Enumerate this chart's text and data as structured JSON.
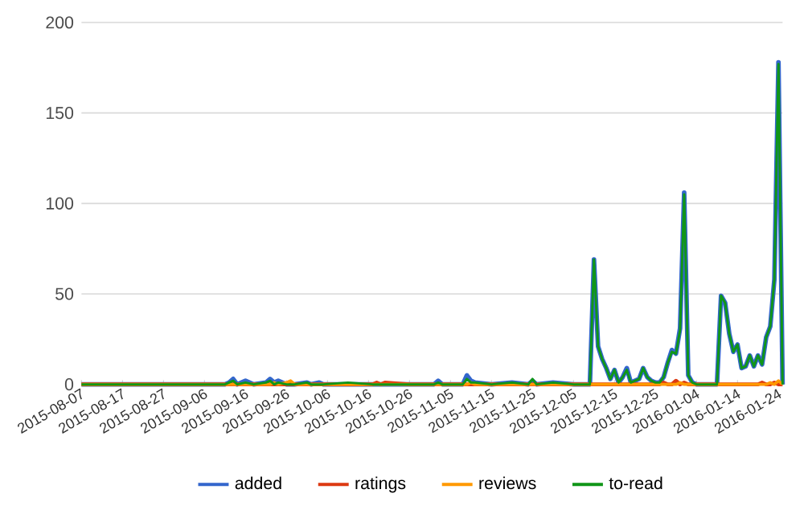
{
  "chart_data": {
    "type": "line",
    "x": [
      "2015-08-07",
      "2015-09-11",
      "2015-09-12",
      "2015-09-13",
      "2015-09-14",
      "2015-09-16",
      "2015-09-18",
      "2015-09-21",
      "2015-09-22",
      "2015-09-23",
      "2015-09-24",
      "2015-09-26",
      "2015-09-27",
      "2015-09-28",
      "2015-10-01",
      "2015-10-02",
      "2015-10-04",
      "2015-10-05",
      "2015-10-11",
      "2015-10-17",
      "2015-10-18",
      "2015-10-19",
      "2015-10-20",
      "2015-10-26",
      "2015-11-01",
      "2015-11-02",
      "2015-11-03",
      "2015-11-08",
      "2015-11-09",
      "2015-11-10",
      "2015-11-11",
      "2015-11-15",
      "2015-11-20",
      "2015-11-24",
      "2015-11-25",
      "2015-11-26",
      "2015-11-30",
      "2015-12-05",
      "2015-12-08",
      "2015-12-09",
      "2015-12-10",
      "2015-12-11",
      "2015-12-12",
      "2015-12-13",
      "2015-12-14",
      "2015-12-15",
      "2015-12-16",
      "2015-12-17",
      "2015-12-18",
      "2015-12-19",
      "2015-12-20",
      "2015-12-21",
      "2015-12-22",
      "2015-12-23",
      "2015-12-24",
      "2015-12-25",
      "2015-12-26",
      "2015-12-27",
      "2015-12-28",
      "2015-12-29",
      "2015-12-30",
      "2015-12-31",
      "2016-01-01",
      "2016-01-02",
      "2016-01-03",
      "2016-01-04",
      "2016-01-05",
      "2016-01-06",
      "2016-01-07",
      "2016-01-08",
      "2016-01-09",
      "2016-01-10",
      "2016-01-11",
      "2016-01-12",
      "2016-01-13",
      "2016-01-14",
      "2016-01-15",
      "2016-01-16",
      "2016-01-17",
      "2016-01-18",
      "2016-01-19",
      "2016-01-20",
      "2016-01-21",
      "2016-01-22",
      "2016-01-23",
      "2016-01-24",
      "2016-01-25"
    ],
    "series": [
      {
        "name": "added",
        "color": "#3366cc",
        "values": [
          0,
          0,
          1,
          3,
          0,
          2,
          0,
          1,
          3,
          1,
          2,
          0,
          0,
          0,
          1,
          0,
          1,
          0,
          0,
          0,
          0,
          0,
          0,
          0,
          0,
          2,
          0,
          0,
          5,
          2,
          1,
          0,
          1,
          0,
          2,
          0,
          1,
          0,
          0,
          0,
          69,
          21,
          14,
          9,
          3,
          8,
          1,
          4,
          9,
          1,
          2,
          3,
          9,
          4,
          2,
          1,
          1,
          4,
          12,
          19,
          17,
          31,
          106,
          5,
          1,
          0,
          0,
          0,
          0,
          0,
          0,
          49,
          45,
          28,
          18,
          22,
          9,
          10,
          16,
          10,
          16,
          11,
          26,
          32,
          58,
          178,
          0
        ]
      },
      {
        "name": "ratings",
        "color": "#dc3912",
        "values": [
          0,
          0,
          0,
          0,
          0,
          0,
          0,
          0,
          0,
          0,
          0,
          0,
          0,
          0,
          0,
          0,
          0,
          0,
          0,
          0,
          1,
          0,
          1,
          0,
          0,
          0,
          0,
          0,
          0,
          0,
          0,
          0,
          0,
          0,
          0,
          0,
          0,
          0,
          0,
          0,
          0,
          0,
          0,
          0,
          0,
          0,
          0,
          0,
          0,
          0,
          0,
          0,
          0,
          0,
          0,
          0,
          0,
          1,
          0,
          0,
          2,
          0,
          1,
          0,
          0,
          0,
          0,
          0,
          0,
          0,
          0,
          0,
          0,
          0,
          0,
          0,
          0,
          0,
          0,
          0,
          0,
          1,
          0,
          0,
          1,
          0,
          0
        ]
      },
      {
        "name": "reviews",
        "color": "#ff9900",
        "values": [
          0,
          0,
          0,
          0,
          0,
          0,
          0,
          0,
          0,
          1,
          0,
          1,
          2,
          0,
          0,
          0,
          0,
          0,
          0,
          0,
          0,
          0,
          0,
          0,
          0,
          0,
          0,
          0,
          0,
          1,
          0,
          0,
          0,
          0,
          0,
          0,
          0,
          0,
          0,
          0,
          0,
          0,
          0,
          0,
          0,
          0,
          0,
          0,
          0,
          0,
          0,
          0,
          0,
          0,
          0,
          0,
          0,
          0,
          0,
          0,
          0,
          1,
          0,
          0,
          0,
          0,
          0,
          0,
          0,
          0,
          0,
          0,
          0,
          0,
          0,
          0,
          0,
          0,
          0,
          0,
          0,
          0,
          0,
          1,
          0,
          2,
          0
        ]
      },
      {
        "name": "to-read",
        "color": "#109618",
        "values": [
          0,
          0,
          1,
          2,
          0,
          1,
          0,
          1,
          2,
          0,
          1,
          0,
          0,
          0,
          1,
          0,
          0,
          0,
          1,
          0,
          0,
          0,
          0,
          0,
          0,
          1,
          0,
          0,
          3,
          1,
          1,
          0,
          1,
          0,
          3,
          0,
          1,
          0,
          0,
          0,
          69,
          21,
          14,
          9,
          3,
          8,
          1,
          4,
          8,
          1,
          2,
          3,
          9,
          4,
          2,
          1,
          1,
          4,
          12,
          18,
          17,
          30,
          105,
          5,
          1,
          0,
          0,
          0,
          0,
          0,
          0,
          49,
          45,
          28,
          18,
          22,
          9,
          10,
          16,
          10,
          16,
          11,
          26,
          32,
          58,
          177,
          0
        ]
      }
    ],
    "xlim": [
      "2015-08-07",
      "2016-01-25"
    ],
    "xticks": [
      "2015-08-07",
      "2015-08-17",
      "2015-08-27",
      "2015-09-06",
      "2015-09-16",
      "2015-09-26",
      "2015-10-06",
      "2015-10-16",
      "2015-10-26",
      "2015-11-05",
      "2015-11-15",
      "2015-11-25",
      "2015-12-05",
      "2015-12-15",
      "2015-12-25",
      "2016-01-04",
      "2016-01-14",
      "2016-01-24"
    ],
    "ylim": [
      0,
      200
    ],
    "yticks": [
      0,
      50,
      100,
      150,
      200
    ],
    "grid": "y",
    "legend": "bottom"
  }
}
